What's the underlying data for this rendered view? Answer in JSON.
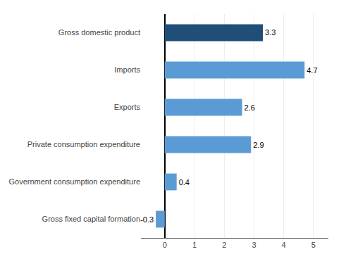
{
  "chart_data": {
    "type": "bar",
    "orientation": "horizontal",
    "categories": [
      "Gross fixed capital formation",
      "Government consumption expenditure",
      "Private consumption expenditure",
      "Exports",
      "Imports",
      "Gross domestic product"
    ],
    "values": [
      -0.3,
      0.4,
      2.9,
      2.6,
      4.7,
      3.3
    ],
    "colors": [
      "#5b9bd5",
      "#5b9bd5",
      "#5b9bd5",
      "#5b9bd5",
      "#5b9bd5",
      "#1f4e79"
    ],
    "xlim": [
      -0.8,
      5.5
    ],
    "xticks": [
      0,
      1,
      2,
      3,
      4,
      5
    ],
    "grid": true,
    "data_labels": true
  }
}
